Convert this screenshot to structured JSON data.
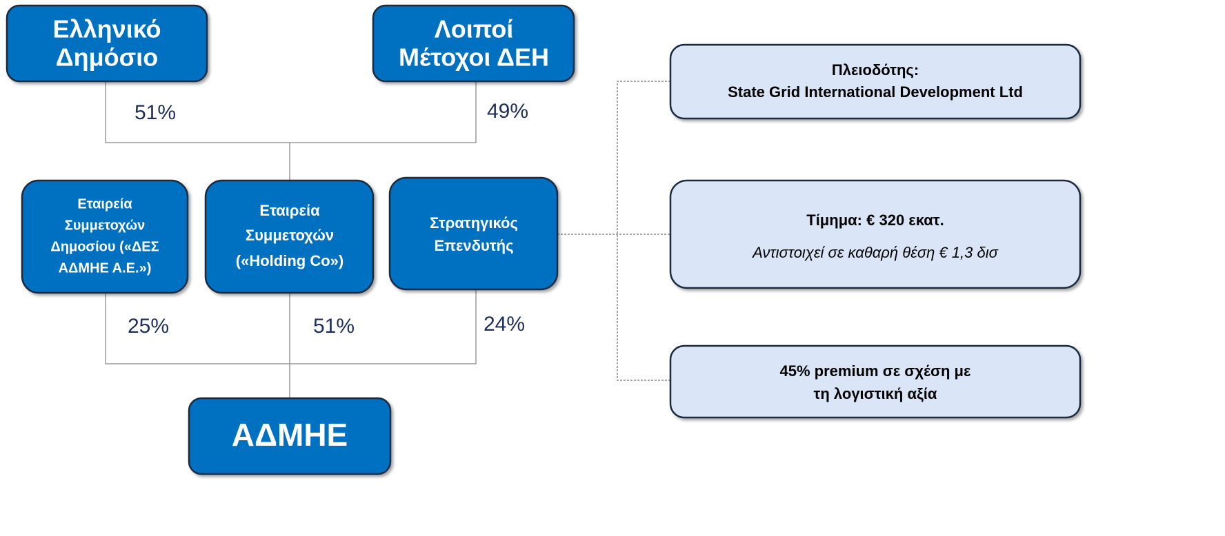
{
  "nodes": [
    {
      "lines": [
        "Ελληνικό",
        "Δημόσιο"
      ]
    },
    {
      "lines": [
        "Λοιποί",
        "Μέτοχοι ΔΕΗ"
      ]
    },
    {
      "lines": [
        "Εταιρεία",
        "Συμμετοχών",
        "Δημοσίου («ΔΕΣ",
        "ΑΔΜΗΕ Α.Ε.»)"
      ]
    },
    {
      "lines": [
        "Εταιρεία",
        "Συμμετοχών",
        "(«Holding Co»)"
      ]
    },
    {
      "lines": [
        "Στρατηγικός",
        "Επενδυτής"
      ]
    },
    {
      "lines": [
        "ΑΔΜΗΕ"
      ]
    }
  ],
  "edges": [
    {
      "label": "51%"
    },
    {
      "label": "49%"
    },
    {
      "label": "25%"
    },
    {
      "label": "51%"
    },
    {
      "label": "24%"
    }
  ],
  "info_boxes": [
    {
      "lines": [
        "Πλειοδότης:",
        "State Grid International Development Ltd"
      ]
    },
    {
      "lines": [
        "Τίμημα: € 320 εκατ.",
        "Αντιστοιχεί σε καθαρή θέση € 1,3 δισ"
      ]
    },
    {
      "lines": [
        "45% premium σε σχέση με",
        "τη λογιστική αξία"
      ]
    }
  ]
}
